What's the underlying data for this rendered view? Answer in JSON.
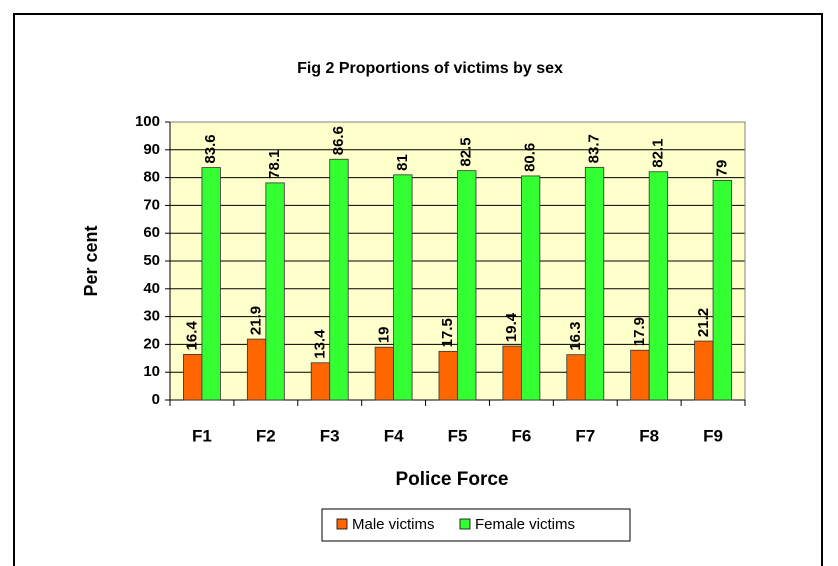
{
  "chart_data": {
    "type": "bar",
    "title": "Fig 2  Proportions of victims by sex",
    "x_label": "Police Force",
    "y_label": "Per cent",
    "categories": [
      "F1",
      "F2",
      "F3",
      "F4",
      "F5",
      "F6",
      "F7",
      "F8",
      "F9"
    ],
    "series": [
      {
        "name": "Male victims",
        "color": "#ff6600",
        "values": [
          16.4,
          21.9,
          13.4,
          19,
          17.5,
          19.4,
          16.3,
          17.9,
          21.2
        ]
      },
      {
        "name": "Female victims",
        "color": "#33ff33",
        "values": [
          83.6,
          78.1,
          86.6,
          81,
          82.5,
          80.6,
          83.7,
          82.1,
          79
        ]
      }
    ],
    "ylim": [
      0,
      100
    ],
    "yticks": [
      0,
      10,
      20,
      30,
      40,
      50,
      60,
      70,
      80,
      90,
      100
    ],
    "grid": true,
    "legend": "bottom"
  }
}
